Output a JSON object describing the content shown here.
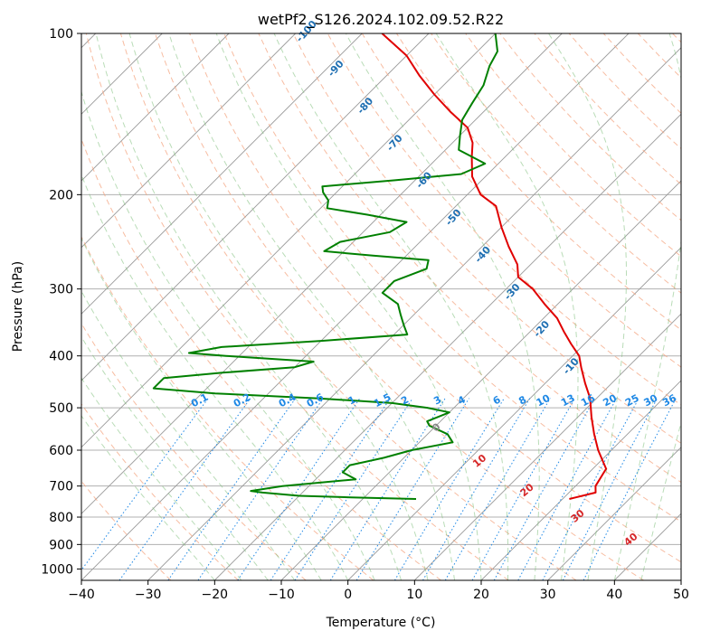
{
  "chart_data": {
    "type": "line",
    "title": "wetPf2_S126.2024.102.09.52.R22",
    "xlabel": "Temperature (°C)",
    "ylabel": "Pressure (hPa)",
    "xlim": [
      -40,
      50
    ],
    "ylim": [
      1050,
      100
    ],
    "y_scale": "log",
    "skew": "skew-T log-p",
    "grid": true,
    "x_ticks": [
      "−40",
      "−30",
      "−20",
      "−10",
      "0",
      "10",
      "20",
      "30",
      "40",
      "50"
    ],
    "x_tick_values": [
      -40,
      -30,
      -20,
      -10,
      0,
      10,
      20,
      30,
      40,
      50
    ],
    "y_ticks": [
      "100",
      "200",
      "300",
      "400",
      "500",
      "600",
      "700",
      "800",
      "900",
      "1000"
    ],
    "y_tick_values": [
      100,
      200,
      300,
      400,
      500,
      600,
      700,
      800,
      900,
      1000
    ],
    "series": [
      {
        "kind": "temperature",
        "color": "#e00000",
        "points": [
          [
            740,
            21
          ],
          [
            720,
            24
          ],
          [
            700,
            23
          ],
          [
            650,
            22
          ],
          [
            600,
            18
          ],
          [
            560,
            15
          ],
          [
            520,
            12
          ],
          [
            480,
            9
          ],
          [
            450,
            6
          ],
          [
            420,
            3
          ],
          [
            400,
            1
          ],
          [
            380,
            -2
          ],
          [
            360,
            -5
          ],
          [
            340,
            -8
          ],
          [
            320,
            -12
          ],
          [
            300,
            -16
          ],
          [
            285,
            -20
          ],
          [
            270,
            -22
          ],
          [
            250,
            -26
          ],
          [
            230,
            -30
          ],
          [
            210,
            -34
          ],
          [
            200,
            -38
          ],
          [
            185,
            -42
          ],
          [
            170,
            -45
          ],
          [
            160,
            -47
          ],
          [
            150,
            -50
          ],
          [
            140,
            -55
          ],
          [
            130,
            -60
          ],
          [
            120,
            -65
          ],
          [
            110,
            -70
          ],
          [
            100,
            -77
          ]
        ]
      },
      {
        "kind": "dewpoint",
        "color": "#008000",
        "points": [
          [
            740,
            -2
          ],
          [
            735,
            -12
          ],
          [
            730,
            -20
          ],
          [
            720,
            -26
          ],
          [
            715,
            -28
          ],
          [
            700,
            -24
          ],
          [
            680,
            -14
          ],
          [
            660,
            -17
          ],
          [
            640,
            -17
          ],
          [
            620,
            -13
          ],
          [
            600,
            -10
          ],
          [
            580,
            -5
          ],
          [
            560,
            -7
          ],
          [
            540,
            -11
          ],
          [
            530,
            -12
          ],
          [
            520,
            -11
          ],
          [
            510,
            -10
          ],
          [
            500,
            -14
          ],
          [
            490,
            -20
          ],
          [
            480,
            -32
          ],
          [
            470,
            -48
          ],
          [
            460,
            -58
          ],
          [
            440,
            -58
          ],
          [
            430,
            -50
          ],
          [
            420,
            -40
          ],
          [
            410,
            -38
          ],
          [
            400,
            -52
          ],
          [
            395,
            -58
          ],
          [
            385,
            -54
          ],
          [
            375,
            -40
          ],
          [
            365,
            -28
          ],
          [
            350,
            -30
          ],
          [
            335,
            -32
          ],
          [
            320,
            -34
          ],
          [
            305,
            -38
          ],
          [
            290,
            -38
          ],
          [
            275,
            -35
          ],
          [
            265,
            -36
          ],
          [
            260,
            -45
          ],
          [
            255,
            -53
          ],
          [
            245,
            -52
          ],
          [
            235,
            -46
          ],
          [
            225,
            -45
          ],
          [
            218,
            -52
          ],
          [
            212,
            -59
          ],
          [
            205,
            -60
          ],
          [
            198,
            -62
          ],
          [
            193,
            -63
          ],
          [
            188,
            -53
          ],
          [
            183,
            -44
          ],
          [
            175,
            -42
          ],
          [
            165,
            -48
          ],
          [
            155,
            -50
          ],
          [
            145,
            -52
          ],
          [
            135,
            -53
          ],
          [
            125,
            -54
          ],
          [
            115,
            -56
          ],
          [
            108,
            -57
          ],
          [
            100,
            -60
          ]
        ]
      }
    ],
    "mixing_ratio_labels": [
      "0.1",
      "0.2",
      "0.4",
      "0.6",
      "1",
      "1.5",
      "2",
      "3",
      "4",
      "6",
      "8",
      "10",
      "13",
      "16",
      "20",
      "25",
      "30",
      "36"
    ],
    "mixing_ratio_values": [
      0.1,
      0.2,
      0.4,
      0.6,
      1,
      1.5,
      2,
      3,
      4,
      6,
      8,
      10,
      13,
      16,
      20,
      25,
      30,
      36
    ],
    "dry_adiabat_labels": [
      "-100",
      "-90",
      "-80",
      "-70",
      "-60",
      "-50",
      "-40",
      "-30",
      "-20",
      "-10"
    ],
    "dry_adiabat_values": [
      -100,
      -90,
      -80,
      -70,
      -60,
      -50,
      -40,
      -30,
      -20,
      -10
    ],
    "moist_adiabat_labels": [
      "0",
      "10",
      "20",
      "30",
      "40"
    ],
    "moist_adiabat_values": [
      0,
      10,
      20,
      30,
      40
    ],
    "colors": {
      "temperature": "#e00000",
      "dewpoint": "#008000",
      "dry_adiabat": "#f4a582",
      "moist_adiabat": "#7fbf7b",
      "mixing_ratio": "#1e88e5",
      "isotherm": "#999999",
      "dry_label": "#1f6fb2",
      "moist_label": "#d62728",
      "mixing_label": "#1e88e5",
      "moist_zero_label": "#888888"
    }
  }
}
